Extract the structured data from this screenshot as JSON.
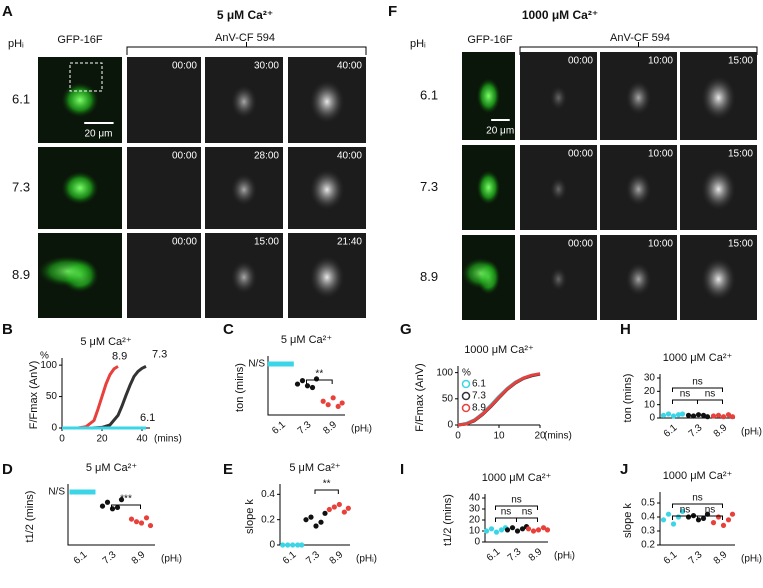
{
  "panels": [
    {
      "letter": "A",
      "title": "5 μM Ca²⁺",
      "row_header": "pHᵢ",
      "columns": [
        "GFP-16F",
        "AnV-CF 594"
      ],
      "scale_bar": "20 μm",
      "rows": [
        {
          "label": "6.1",
          "times": [
            "00:00",
            "30:00",
            "40:00"
          ]
        },
        {
          "label": "7.3",
          "times": [
            "00:00",
            "28:00",
            "40:00"
          ]
        },
        {
          "label": "8.9",
          "times": [
            "00:00",
            "15:00",
            "21:40"
          ]
        }
      ]
    },
    {
      "letter": "F",
      "title": "1000 μM Ca²⁺",
      "row_header": "pHᵢ",
      "columns": [
        "GFP-16F",
        "AnV-CF 594"
      ],
      "scale_bar": "20 μm",
      "rows": [
        {
          "label": "6.1",
          "times": [
            "00:00",
            "10:00",
            "15:00"
          ]
        },
        {
          "label": "7.3",
          "times": [
            "00:00",
            "10:00",
            "15:00"
          ]
        },
        {
          "label": "8.9",
          "times": [
            "00:00",
            "10:00",
            "15:00"
          ]
        }
      ]
    }
  ],
  "chart_data": [
    {
      "letter": "B",
      "type": "line",
      "title": "5 μM Ca²⁺",
      "y_label": "F/Fmax (AnV)",
      "y_unit": "%",
      "x_unit": "(mins)",
      "legend": "inline",
      "xlim": [
        0,
        44
      ],
      "xticks": [
        0,
        20,
        40
      ],
      "ylim": [
        0,
        105
      ],
      "yticks": [
        0,
        50,
        100
      ],
      "series": [
        {
          "name": "8.9",
          "color": "#e8403a",
          "x": [
            0,
            4,
            8,
            12,
            16,
            18,
            20,
            22,
            24,
            26,
            28
          ],
          "values": [
            0,
            0,
            0,
            2,
            12,
            30,
            50,
            70,
            85,
            94,
            98
          ]
        },
        {
          "name": "7.3",
          "color": "#333333",
          "x": [
            0,
            5,
            10,
            15,
            20,
            24,
            28,
            30,
            32,
            34,
            36,
            38,
            40,
            42
          ],
          "values": [
            0,
            0,
            0,
            0,
            1,
            5,
            20,
            35,
            52,
            68,
            82,
            90,
            95,
            98
          ]
        },
        {
          "name": "6.1",
          "color": "#3ad6e8",
          "x": [
            0,
            10,
            20,
            30,
            40,
            42
          ],
          "values": [
            0,
            0,
            0,
            0,
            0,
            0
          ]
        }
      ]
    },
    {
      "letter": "C",
      "type": "dot",
      "title": "5 μM Ca²⁺",
      "y_label": "ton (mins)",
      "x_unit": "(pHᵢ)",
      "annotation": "N/S",
      "ylim": [
        0,
        32
      ],
      "categories": [
        "6.1",
        "7.3",
        "8.9"
      ],
      "colors": [
        "#3ad6e8",
        "#111111",
        "#e8403a"
      ],
      "values": [
        null,
        [
          18,
          20,
          17,
          16,
          21
        ],
        [
          8,
          6,
          10,
          5,
          7
        ]
      ],
      "annotations": [
        {
          "from": "7.3",
          "to": "8.9",
          "text": "**"
        }
      ]
    },
    {
      "letter": "D",
      "type": "dot",
      "title": "5 μM Ca²⁺",
      "y_label": "t1/2 (mins)",
      "x_unit": "(pHᵢ)",
      "annotation": "N/S",
      "ylim": [
        0,
        44
      ],
      "categories": [
        "6.1",
        "7.3",
        "8.9"
      ],
      "colors": [
        "#3ad6e8",
        "#111111",
        "#e8403a"
      ],
      "values": [
        null,
        [
          30,
          33,
          28,
          29,
          35
        ],
        [
          20,
          18,
          17,
          21,
          15
        ]
      ],
      "annotations": [
        {
          "from": "7.3",
          "to": "8.9",
          "text": "***"
        }
      ]
    },
    {
      "letter": "E",
      "type": "dot",
      "title": "5 μM Ca²⁺",
      "y_label": "slope k",
      "x_unit": "(pHᵢ)",
      "ylim": [
        0,
        0.45
      ],
      "yticks": [
        0,
        0.2,
        0.4
      ],
      "categories": [
        "6.1",
        "7.3",
        "8.9"
      ],
      "colors": [
        "#3ad6e8",
        "#111111",
        "#e8403a"
      ],
      "values": [
        [
          0,
          0,
          0,
          0,
          0
        ],
        [
          0.2,
          0.22,
          0.15,
          0.18,
          0.25
        ],
        [
          0.28,
          0.3,
          0.32,
          0.26,
          0.29
        ]
      ],
      "annotations": [
        {
          "from": "7.3",
          "to": "8.9",
          "text": "**"
        }
      ]
    },
    {
      "letter": "G",
      "type": "line",
      "title": "1000 μM Ca²⁺",
      "y_label": "F/Fmax (AnV)",
      "y_unit": "%",
      "x_unit": "(mins)",
      "legend": "upper left",
      "xlim": [
        0,
        20
      ],
      "xticks": [
        0,
        10,
        20
      ],
      "ylim": [
        0,
        105
      ],
      "yticks": [
        0,
        50,
        100
      ],
      "series": [
        {
          "name": "6.1",
          "color": "#3ad6e8",
          "x": [
            0,
            2,
            4,
            6,
            8,
            10,
            12,
            14,
            16,
            18,
            20
          ],
          "values": [
            0,
            3,
            10,
            22,
            38,
            55,
            70,
            82,
            90,
            95,
            98
          ]
        },
        {
          "name": "7.3",
          "color": "#333333",
          "x": [
            0,
            2,
            4,
            6,
            8,
            10,
            12,
            14,
            16,
            18,
            20
          ],
          "values": [
            0,
            2,
            8,
            20,
            35,
            52,
            68,
            80,
            89,
            94,
            97
          ]
        },
        {
          "name": "8.9",
          "color": "#e8403a",
          "x": [
            0,
            2,
            4,
            6,
            8,
            10,
            12,
            14,
            16,
            18,
            20
          ],
          "values": [
            0,
            2,
            9,
            21,
            36,
            53,
            69,
            81,
            90,
            95,
            98
          ]
        }
      ]
    },
    {
      "letter": "H",
      "type": "dot",
      "title": "1000 μM Ca²⁺",
      "y_label": "ton (mins)",
      "x_unit": "(pHᵢ)",
      "ylim": [
        0,
        30
      ],
      "yticks": [
        0,
        10,
        20,
        30
      ],
      "categories": [
        "6.1",
        "7.3",
        "8.9"
      ],
      "colors": [
        "#3ad6e8",
        "#111111",
        "#e8403a"
      ],
      "values": [
        [
          2,
          3,
          1.5,
          2.5,
          3
        ],
        [
          2,
          1.5,
          2.5,
          2,
          1
        ],
        [
          1.5,
          2,
          1,
          2.5,
          1
        ]
      ],
      "annotations": [
        {
          "from": "6.1",
          "to": "8.9",
          "text": "ns"
        },
        {
          "from": "6.1",
          "to": "7.3",
          "text": "ns"
        },
        {
          "from": "7.3",
          "to": "8.9",
          "text": "ns"
        }
      ]
    },
    {
      "letter": "I",
      "type": "dot",
      "title": "1000 μM Ca²⁺",
      "y_label": "t1/2 (mins)",
      "x_unit": "(pHᵢ)",
      "ylim": [
        0,
        40
      ],
      "yticks": [
        0,
        10,
        20,
        30,
        40
      ],
      "categories": [
        "6.1",
        "7.3",
        "8.9"
      ],
      "colors": [
        "#3ad6e8",
        "#111111",
        "#e8403a"
      ],
      "values": [
        [
          10,
          12,
          9,
          11,
          13
        ],
        [
          11,
          13,
          10,
          12,
          14
        ],
        [
          12,
          10,
          11,
          13,
          11
        ]
      ],
      "annotations": [
        {
          "from": "6.1",
          "to": "8.9",
          "text": "ns"
        },
        {
          "from": "6.1",
          "to": "7.3",
          "text": "ns"
        },
        {
          "from": "7.3",
          "to": "8.9",
          "text": "ns"
        }
      ]
    },
    {
      "letter": "J",
      "type": "dot",
      "title": "1000 μM Ca²⁺",
      "y_label": "slope k",
      "x_unit": "(pHᵢ)",
      "ylim": [
        0.2,
        0.55
      ],
      "yticks": [
        0.2,
        0.3,
        0.4,
        0.5
      ],
      "categories": [
        "6.1",
        "7.3",
        "8.9"
      ],
      "colors": [
        "#3ad6e8",
        "#111111",
        "#e8403a"
      ],
      "values": [
        [
          0.38,
          0.42,
          0.35,
          0.4,
          0.44
        ],
        [
          0.4,
          0.41,
          0.38,
          0.39,
          0.42
        ],
        [
          0.36,
          0.4,
          0.34,
          0.38,
          0.42
        ]
      ],
      "annotations": [
        {
          "from": "6.1",
          "to": "8.9",
          "text": "ns"
        },
        {
          "from": "6.1",
          "to": "7.3",
          "text": "ns"
        },
        {
          "from": "7.3",
          "to": "8.9",
          "text": "ns"
        }
      ]
    }
  ]
}
